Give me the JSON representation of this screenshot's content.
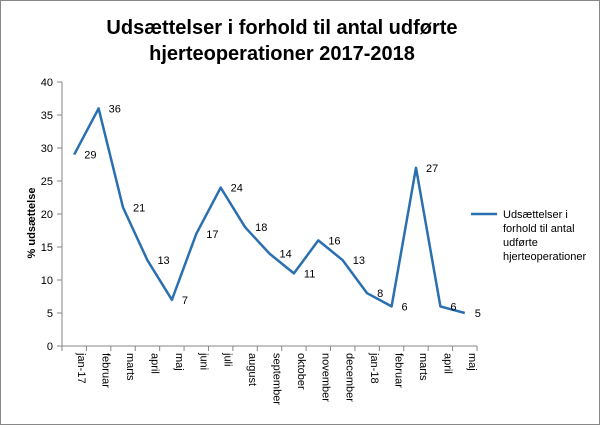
{
  "chart_data": {
    "type": "line",
    "title_lines": [
      "Udsættelser i forhold til antal udførte",
      "hjerteoperationer  2017-2018"
    ],
    "ylabel": "% udsættelse",
    "xlabel": "",
    "ylim": [
      0,
      40
    ],
    "yticks": [
      0,
      5,
      10,
      15,
      20,
      25,
      30,
      35,
      40
    ],
    "grid": false,
    "legend_position": "right",
    "categories": [
      "jan-17",
      "februar",
      "marts",
      "april",
      "maj",
      "juni",
      "juli",
      "august",
      "september",
      "oktober",
      "november",
      "december",
      "jan-18",
      "februar",
      "marts",
      "april",
      "maj"
    ],
    "series": [
      {
        "name_lines": [
          "Udsættelser i",
          "forhold til antal",
          "udførte",
          "hjerteoperationer"
        ],
        "color": "#2a6fb0",
        "values": [
          29,
          36,
          21,
          13,
          7,
          17,
          24,
          18,
          14,
          11,
          16,
          13,
          8,
          6,
          27,
          6,
          5
        ]
      }
    ]
  }
}
